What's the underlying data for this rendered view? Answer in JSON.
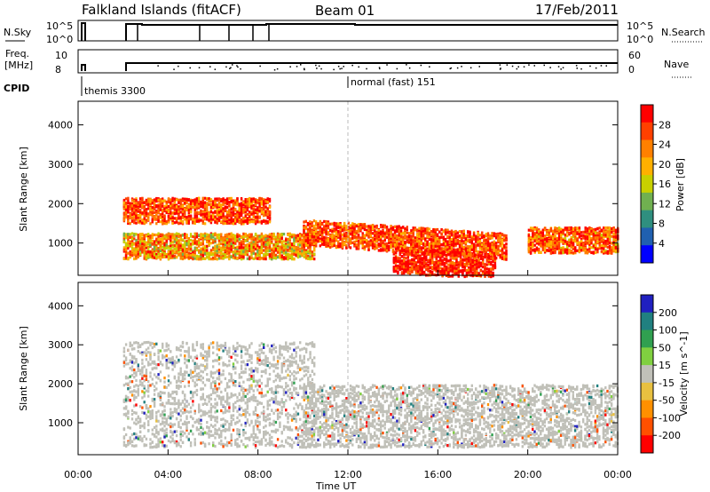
{
  "header": {
    "station": "Falkland Islands (fitACF)",
    "beam": "Beam 01",
    "date": "17/Feb/2011"
  },
  "panels": {
    "nsky_label": "N.Sky",
    "nsky_ticks": [
      "10^5",
      "10^0"
    ],
    "nsearch_label": "N.Search",
    "nsearch_ticks": [
      "10^5",
      "10^0"
    ],
    "freq_label_1": "Freq.",
    "freq_label_2": "[MHz]",
    "freq_ticks": [
      "10",
      "8"
    ],
    "nave_label": "Nave",
    "nave_ticks": [
      "60",
      "0"
    ],
    "cpid_label": "CPID",
    "cpid_entries": [
      "themis 3300",
      "normal (fast) 151"
    ]
  },
  "colorbars": {
    "power_label": "Power [dB]",
    "power_ticks": [
      "28",
      "24",
      "20",
      "16",
      "12",
      "8",
      "4"
    ],
    "power_colors": [
      "#ff0000",
      "#ff4000",
      "#ff8000",
      "#ffb000",
      "#c8d000",
      "#70b050",
      "#2f8f7f",
      "#2060b0",
      "#0000ff"
    ],
    "velocity_label": "Velocity [m s^-1]",
    "velocity_ticks": [
      "200",
      "100",
      "50",
      "15",
      "-15",
      "-50",
      "-100",
      "-200"
    ],
    "velocity_colors": [
      "#2020c0",
      "#208080",
      "#30a050",
      "#80d040",
      "#c0c0b8",
      "#e8c040",
      "#ff9000",
      "#ff5000",
      "#ff0000"
    ]
  },
  "chart_data": [
    {
      "type": "heatmap",
      "name_on_chart": "Power [dB]",
      "xlabel": "Time UT",
      "ylabel": "Slant Range [km]",
      "xlim": [
        "00:00",
        "24:00"
      ],
      "ylim": [
        180,
        4600
      ],
      "x_ticks": [
        "00:00",
        "04:00",
        "08:00",
        "12:00",
        "16:00",
        "20:00",
        "00:00"
      ],
      "y_ticks": [
        1000,
        2000,
        3000,
        4000
      ],
      "color_scale": [
        0,
        30
      ],
      "features": [
        {
          "t_start_h": 2.0,
          "t_end_h": 8.5,
          "range_center_km": 1850,
          "value_db": 25
        },
        {
          "t_start_h": 2.0,
          "t_end_h": 10.5,
          "range_center_km": 950,
          "value_db": 20
        },
        {
          "t_start_h": 10.0,
          "t_end_h": 19.0,
          "range_center_km": 1300,
          "value_db": 25
        },
        {
          "t_start_h": 14.0,
          "t_end_h": 18.5,
          "range_center_km": 600,
          "value_db": 28
        },
        {
          "t_start_h": 20.0,
          "t_end_h": 24.0,
          "range_center_km": 1100,
          "value_db": 24
        }
      ]
    },
    {
      "type": "heatmap",
      "name_on_chart": "Velocity [m s^-1]",
      "xlabel": "Time UT",
      "ylabel": "Slant Range [km]",
      "xlim": [
        "00:00",
        "24:00"
      ],
      "ylim": [
        180,
        4600
      ],
      "x_ticks": [
        "00:00",
        "04:00",
        "08:00",
        "12:00",
        "16:00",
        "20:00",
        "00:00"
      ],
      "y_ticks": [
        1000,
        2000,
        3000,
        4000
      ],
      "color_scale": [
        -250,
        250
      ],
      "features": [
        {
          "t_start_h": 2.0,
          "t_end_h": 10.5,
          "range_min_km": 400,
          "range_max_km": 3100,
          "velocity_ms": 0
        },
        {
          "t_start_h": 10.0,
          "t_end_h": 24.0,
          "range_min_km": 400,
          "range_max_km": 2000,
          "velocity_ms": 0
        }
      ]
    }
  ]
}
